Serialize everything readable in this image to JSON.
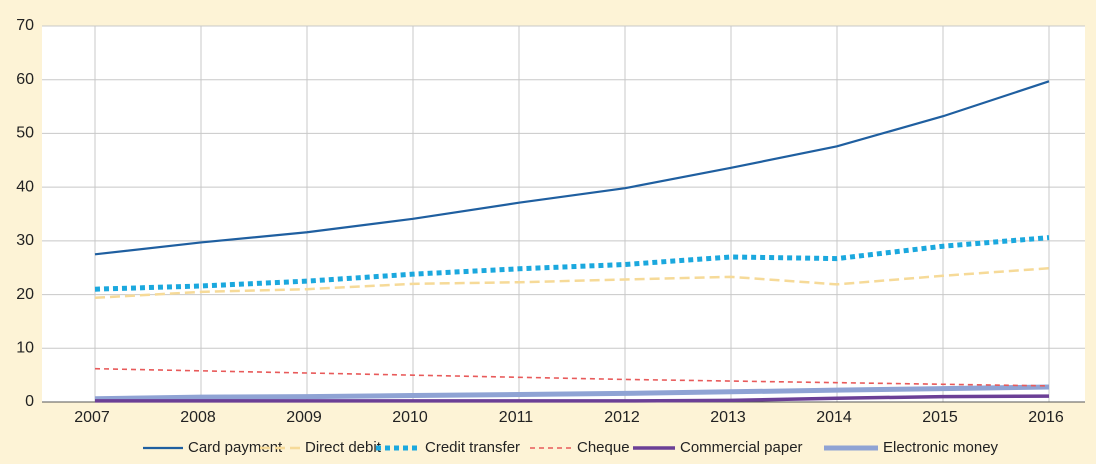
{
  "chart_data": {
    "type": "line",
    "categories": [
      "2007",
      "2008",
      "2009",
      "2010",
      "2011",
      "2012",
      "2013",
      "2014",
      "2015",
      "2016"
    ],
    "ylim": [
      0,
      70
    ],
    "yticks": [
      0,
      10,
      20,
      30,
      40,
      50,
      60,
      70
    ],
    "grid": true,
    "legend": "bottom",
    "series": [
      {
        "name": "Card payment",
        "color": "#1f5fa0",
        "values": [
          27.5,
          29.7,
          31.6,
          34.1,
          37.1,
          39.8,
          43.6,
          47.6,
          53.2,
          59.7
        ]
      },
      {
        "name": "Direct debit",
        "color": "#f6da98",
        "values": [
          19.4,
          20.5,
          21.0,
          22.0,
          22.3,
          22.8,
          23.3,
          21.9,
          23.5,
          24.9
        ]
      },
      {
        "name": "Credit transfer",
        "color": "#1ba8de",
        "values": [
          21.0,
          21.6,
          22.5,
          23.8,
          24.8,
          25.6,
          27.0,
          26.7,
          29.0,
          30.6
        ]
      },
      {
        "name": "Cheque",
        "color": "#e85a5a",
        "values": [
          6.2,
          5.8,
          5.4,
          5.0,
          4.6,
          4.2,
          3.9,
          3.6,
          3.3,
          3.0
        ]
      },
      {
        "name": "Commercial paper",
        "color": "#6b3f96",
        "values": [
          0.2,
          0.2,
          0.2,
          0.2,
          0.2,
          0.2,
          0.3,
          0.7,
          1.0,
          1.1
        ]
      },
      {
        "name": "Electronic money",
        "color": "#8fa3d4",
        "values": [
          0.6,
          0.9,
          1.0,
          1.2,
          1.4,
          1.6,
          1.9,
          2.2,
          2.5,
          2.8
        ]
      }
    ]
  }
}
